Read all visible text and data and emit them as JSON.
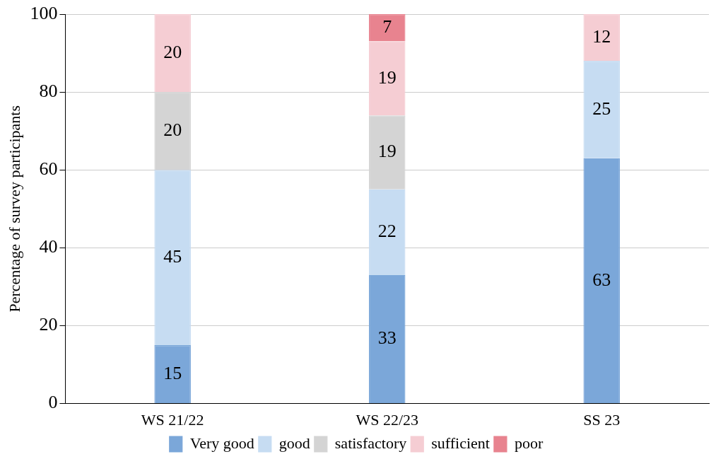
{
  "chart_data": {
    "type": "bar",
    "stacked": true,
    "ylabel": "Percentage of survey participants",
    "categories": [
      "WS 21/22",
      "WS 22/23",
      "SS 23"
    ],
    "series": [
      {
        "name": "Very good",
        "color": "#7ba7d9",
        "values": [
          15,
          33,
          63
        ]
      },
      {
        "name": "good",
        "color": "#c6dcf2",
        "values": [
          45,
          22,
          25
        ]
      },
      {
        "name": "satisfactory",
        "color": "#d4d4d4",
        "values": [
          20,
          19,
          null
        ]
      },
      {
        "name": "sufficient",
        "color": "#f5cdd3",
        "values": [
          20,
          19,
          12
        ]
      },
      {
        "name": "poor",
        "color": "#e8838f",
        "values": [
          null,
          7,
          null
        ]
      }
    ],
    "ylim": [
      0,
      100
    ],
    "yticks": [
      0,
      20,
      40,
      60,
      80,
      100
    ],
    "grid": "y",
    "legend": "bottom",
    "data_labels": true
  }
}
